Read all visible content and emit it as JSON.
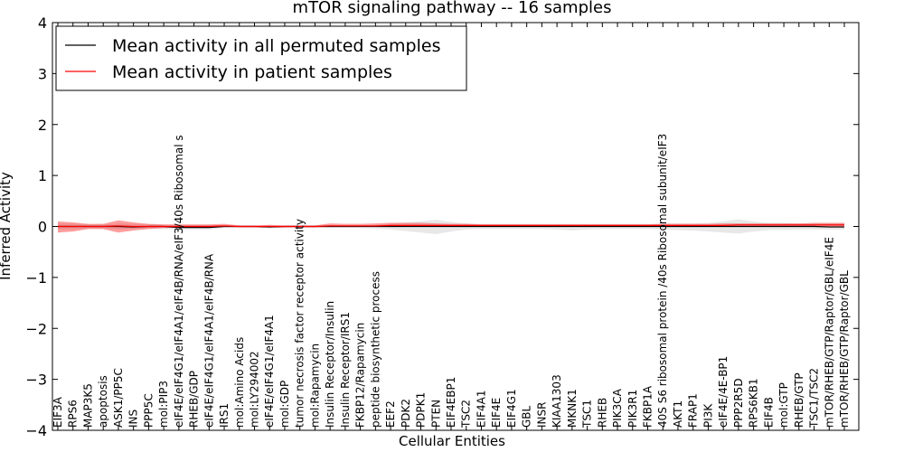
{
  "chart_data": {
    "type": "line",
    "title": "mTOR signaling pathway -- 16 samples",
    "xlabel": "Cellular Entities",
    "ylabel": "Inferred Activity",
    "ylim": [
      -4,
      4
    ],
    "yticks": [
      -4,
      -3,
      -2,
      -1,
      0,
      1,
      2,
      3,
      4
    ],
    "ytick_labels": [
      "−4",
      "−3",
      "−2",
      "−1",
      "0",
      "1",
      "2",
      "3",
      "4"
    ],
    "grid": false,
    "legend_position": "top-left",
    "categories": [
      "EIF3A",
      "RPS6",
      "MAP3K5",
      "apoptosis",
      "ASK1/PP5C",
      "INS",
      "PPP5C",
      "mol:PIP3",
      "eIF4E/eIF4G1/eIF4A1/eIF4B/RNA/eIF3/40s Ribosomal s",
      "RHEB/GDP",
      "eIF4E/eIF4G1/eIF4A1/eIF4B/RNA",
      "IRS1",
      "mol:Amino Acids",
      "mol:LY294002",
      "eIF4E/eIF4G1/eIF4A1",
      "mol:GDP",
      "tumor necrosis factor receptor activity",
      "mol:Rapamycin",
      "Insulin Receptor/Insulin",
      "Insulin Receptor/IRS1",
      "FKBP12/Rapamycin",
      "peptide biosynthetic process",
      "EEF2",
      "PDK2",
      "PDPK1",
      "PTEN",
      "EIF4EBP1",
      "TSC2",
      "EIF4A1",
      "EIF4E",
      "EIF4G1",
      "GBL",
      "INSR",
      "KIAA1303",
      "MKNK1",
      "TSC1",
      "RHEB",
      "PIK3CA",
      "PIK3R1",
      "FKBP1A",
      "40S S6 ribosomal protein /40s Ribosomal subunit/eIF3",
      "AKT1",
      "FRAP1",
      "PI3K",
      "eIF4E/4E-BP1",
      "PPP2R5D",
      "RPS6KB1",
      "EIF4B",
      "mol:GTP",
      "RHEB/GTP",
      "TSC1/TSC2",
      "mTOR/RHEB/GTP/Raptor/GBL/eIF4E",
      "mTOR/RHEB/GTP/Raptor/GBL"
    ],
    "series": [
      {
        "name": "Mean activity in all permuted samples",
        "color": "#000000",
        "values": [
          0,
          0,
          0,
          0,
          0,
          -0.01,
          0,
          0,
          -0.02,
          -0.02,
          -0.02,
          0,
          0,
          0,
          -0.01,
          0,
          0,
          0,
          0,
          0,
          0,
          0,
          0,
          0,
          0,
          0,
          0,
          0,
          0,
          0,
          0,
          0,
          0,
          0,
          0,
          0,
          0,
          0,
          0,
          0,
          0,
          0,
          0,
          0,
          0,
          0,
          0,
          0,
          0,
          0,
          0,
          -0.01,
          -0.01
        ],
        "band_upper": [
          0.06,
          0.06,
          0.04,
          0.04,
          0.06,
          0.05,
          0.04,
          0.03,
          0.03,
          0.03,
          0.03,
          0.02,
          0.01,
          0.01,
          0.02,
          0.01,
          0.01,
          0.01,
          0.03,
          0.02,
          0.02,
          0.03,
          0.06,
          0.08,
          0.1,
          0.13,
          0.09,
          0.06,
          0.05,
          0.05,
          0.05,
          0.05,
          0.05,
          0.05,
          0.05,
          0.05,
          0.05,
          0.05,
          0.05,
          0.05,
          0.06,
          0.06,
          0.06,
          0.07,
          0.1,
          0.14,
          0.1,
          0.07,
          0.07,
          0.06,
          0.06,
          0.06,
          0.06
        ],
        "band_lower": [
          -0.06,
          -0.06,
          -0.04,
          -0.04,
          -0.06,
          -0.05,
          -0.04,
          -0.05,
          -0.06,
          -0.06,
          -0.06,
          -0.03,
          -0.01,
          -0.01,
          -0.04,
          -0.02,
          -0.01,
          -0.01,
          -0.03,
          -0.03,
          -0.03,
          -0.04,
          -0.06,
          -0.09,
          -0.12,
          -0.15,
          -0.1,
          -0.06,
          -0.05,
          -0.05,
          -0.05,
          -0.05,
          -0.05,
          -0.06,
          -0.08,
          -0.06,
          -0.05,
          -0.05,
          -0.05,
          -0.05,
          -0.06,
          -0.07,
          -0.08,
          -0.1,
          -0.12,
          -0.14,
          -0.1,
          -0.07,
          -0.07,
          -0.06,
          -0.06,
          -0.06,
          -0.06
        ]
      },
      {
        "name": "Mean activity in patient samples",
        "color": "#ff0000",
        "values": [
          0,
          0,
          0,
          0,
          0.01,
          0,
          0,
          0,
          0,
          0,
          0,
          0.01,
          0,
          0,
          0,
          0,
          0,
          0,
          0.01,
          0.01,
          0.01,
          0.01,
          0.02,
          0.02,
          0.02,
          0.02,
          0.02,
          0.02,
          0.02,
          0.02,
          0.02,
          0.02,
          0.02,
          0.02,
          0.02,
          0.02,
          0.02,
          0.02,
          0.02,
          0.02,
          0.02,
          0.02,
          0.02,
          0.02,
          0.02,
          0.03,
          0.03,
          0.03,
          0.03,
          0.03,
          0.03,
          0.03,
          0.03
        ],
        "band_upper": [
          0.1,
          0.08,
          0.05,
          0.05,
          0.12,
          0.08,
          0.05,
          0.04,
          0.04,
          0.04,
          0.04,
          0.05,
          0.02,
          0.02,
          0.03,
          0.02,
          0.02,
          0.02,
          0.06,
          0.05,
          0.05,
          0.06,
          0.07,
          0.07,
          0.07,
          0.06,
          0.05,
          0.05,
          0.04,
          0.04,
          0.04,
          0.04,
          0.04,
          0.04,
          0.04,
          0.04,
          0.04,
          0.04,
          0.04,
          0.04,
          0.05,
          0.05,
          0.05,
          0.05,
          0.06,
          0.06,
          0.06,
          0.06,
          0.06,
          0.06,
          0.07,
          0.07,
          0.07
        ],
        "band_lower": [
          -0.12,
          -0.1,
          -0.05,
          -0.05,
          -0.12,
          -0.08,
          -0.05,
          -0.03,
          -0.02,
          -0.02,
          -0.02,
          -0.01,
          -0.02,
          -0.02,
          -0.02,
          -0.02,
          -0.02,
          -0.02,
          -0.01,
          -0.01,
          -0.01,
          -0.01,
          -0.01,
          -0.01,
          -0.01,
          -0.01,
          -0.01,
          -0.01,
          -0.01,
          -0.01,
          -0.01,
          -0.01,
          -0.01,
          -0.01,
          -0.01,
          -0.01,
          -0.01,
          -0.01,
          -0.01,
          -0.01,
          -0.01,
          -0.01,
          -0.01,
          -0.01,
          -0.01,
          -0.01,
          -0.01,
          -0.01,
          -0.01,
          -0.01,
          -0.01,
          -0.01,
          -0.01
        ]
      }
    ]
  }
}
